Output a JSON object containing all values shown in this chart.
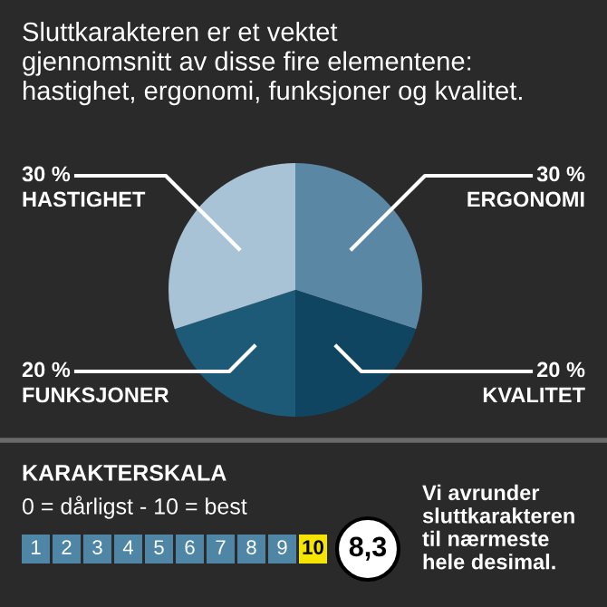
{
  "chart_data": {
    "type": "pie",
    "title": "Sluttkarakteren er et vektet\ngjennomsnitt av disse fire elementene:\nhastighet, ergonomi, funksjoner og kvalitet.",
    "categories": [
      "ERGONOMI",
      "KVALITET",
      "FUNKSJONER",
      "HASTIGHET"
    ],
    "values": [
      30,
      20,
      20,
      30
    ],
    "value_labels": [
      "30 %",
      "20 %",
      "20 %",
      "30 %"
    ],
    "colors": [
      "#5a87a3",
      "#0f4561",
      "#1d5a78",
      "#a7c3d5"
    ],
    "annotations": [
      "KARAKTERSKALA",
      "0 = dårligst - 10 = best",
      "1",
      "2",
      "3",
      "4",
      "5",
      "6",
      "7",
      "8",
      "9",
      "10",
      "8,3",
      "Vi avrunder\nsluttkarakteren\ntil nærmeste\nhele desimal."
    ]
  }
}
